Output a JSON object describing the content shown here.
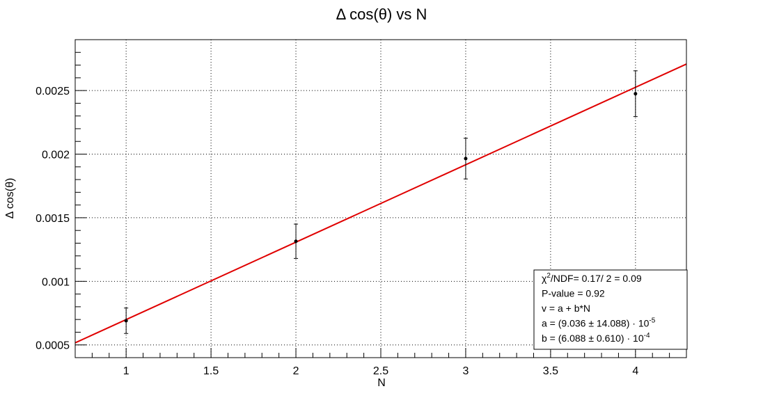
{
  "chart_data": {
    "type": "scatter",
    "title": "Δ cos(θ) vs N",
    "xlabel": "N",
    "ylabel": "Δ cos(θ)",
    "xlim": [
      0.7,
      4.3
    ],
    "ylim": [
      0.0004,
      0.0029
    ],
    "grid": true,
    "x_ticks": [
      1,
      1.5,
      2,
      2.5,
      3,
      3.5,
      4
    ],
    "x_tick_labels": [
      "1",
      "1.5",
      "2",
      "2.5",
      "3",
      "3.5",
      "4"
    ],
    "y_ticks": [
      0.0005,
      0.001,
      0.0015,
      0.002,
      0.0025
    ],
    "y_tick_labels": [
      "0.0005",
      "0.001",
      "0.0015",
      "0.002",
      "0.0025"
    ],
    "series": [
      {
        "points": [
          {
            "x": 1,
            "y": 0.00069,
            "err": 0.0001
          },
          {
            "x": 2,
            "y": 0.001315,
            "err": 0.000135
          },
          {
            "x": 3,
            "y": 0.001965,
            "err": 0.00016
          },
          {
            "x": 4,
            "y": 0.002475,
            "err": 0.00018
          }
        ],
        "color": "#000000"
      }
    ],
    "fit": {
      "a": 9.036e-05,
      "b": 0.0006088,
      "x_range": [
        0.7,
        4.3
      ],
      "color": "#e00000"
    },
    "stats_box": {
      "lines": [
        {
          "pre": "χ",
          "sup": "2",
          "post": "/NDF= 0.17/ 2 = 0.09"
        },
        {
          "pre": "P-value = 0.92",
          "sup": "",
          "post": ""
        },
        {
          "pre": "v = a + b*N",
          "sup": "",
          "post": ""
        },
        {
          "pre": "a = (9.036 ± 14.088) · 10",
          "sup": "-5",
          "post": ""
        },
        {
          "pre": "b = (6.088 ± 0.610) · 10",
          "sup": "-4",
          "post": ""
        }
      ]
    }
  }
}
